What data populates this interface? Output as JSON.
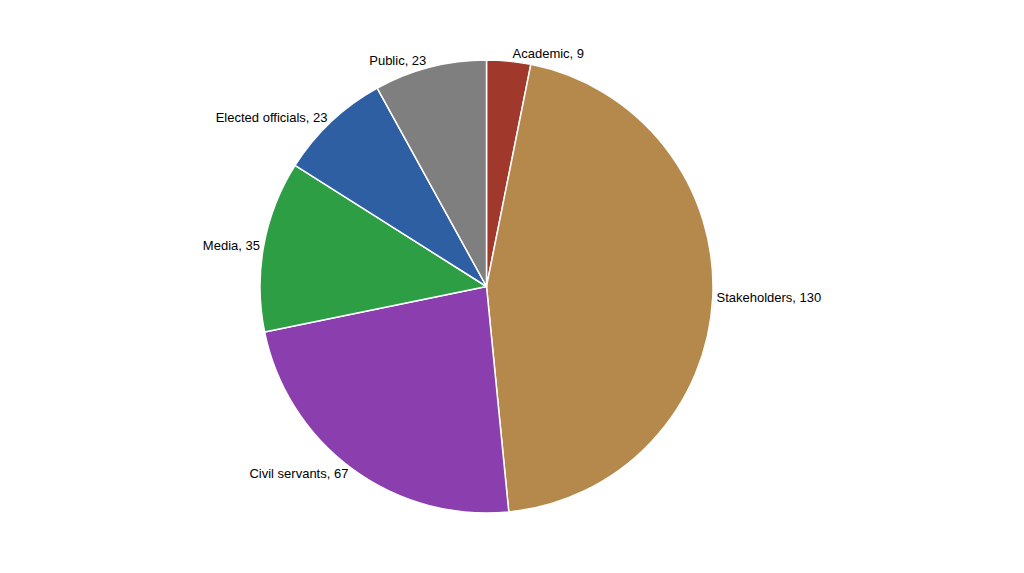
{
  "chart_data": {
    "type": "pie",
    "categories": [
      "Academic",
      "Stakeholders",
      "Civil servants",
      "Media",
      "Elected officials",
      "Public"
    ],
    "values": [
      9,
      130,
      67,
      35,
      23,
      23
    ],
    "value_labels": [
      "Academic, 9",
      "Stakeholders, 130",
      "Civil servants, 67",
      "Media, 35",
      "Elected officials, 23",
      "Public, 23"
    ],
    "colors": [
      "#a0392b",
      "#b5894b",
      "#8b3faf",
      "#2e9e44",
      "#2e5fa3",
      "#7f7f7f"
    ],
    "data_labels": true,
    "legend": false
  }
}
